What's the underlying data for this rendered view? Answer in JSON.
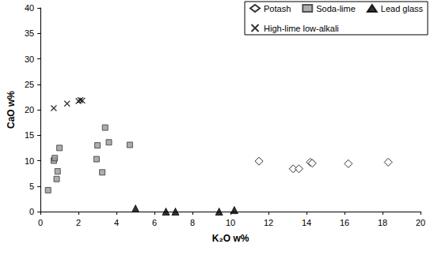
{
  "chart_data": {
    "type": "scatter",
    "x_label": "K₂O w%",
    "y_label": "CaO w%",
    "xlim": [
      0,
      20
    ],
    "xticks": [
      0,
      2,
      4,
      6,
      8,
      10,
      12,
      14,
      16,
      18,
      20
    ],
    "ylim": [
      0,
      40
    ],
    "yticks": [
      0,
      5,
      10,
      15,
      20,
      25,
      30,
      35,
      40
    ],
    "grid": false,
    "legend": "top-right",
    "series": [
      {
        "name": "Potash",
        "color": "#000000",
        "marker": "open-diamond",
        "x": [
          11.5,
          13.3,
          13.6,
          14.2,
          14.3,
          16.2,
          18.3
        ],
        "values": [
          9.9,
          8.4,
          8.4,
          9.7,
          9.5,
          9.4,
          9.7
        ]
      },
      {
        "name": "Soda-lime",
        "color": "#999999",
        "marker": "square",
        "x": [
          0.4,
          0.7,
          0.75,
          0.85,
          0.9,
          1.0,
          3.0,
          2.95,
          3.25,
          3.4,
          3.6,
          4.7
        ],
        "values": [
          4.2,
          10.0,
          10.5,
          6.4,
          7.9,
          12.5,
          13.0,
          10.3,
          7.7,
          16.5,
          13.6,
          13.1
        ]
      },
      {
        "name": "Lead glass",
        "color": "#000000",
        "marker": "triangle",
        "x": [
          5.0,
          6.6,
          7.1,
          9.4,
          10.2
        ],
        "values": [
          0.6,
          0.0,
          0.0,
          0.0,
          0.3
        ]
      },
      {
        "name": "High-lime low-alkali",
        "color": "#000000",
        "marker": "x",
        "x": [
          0.7,
          1.4,
          2.0,
          2.1,
          2.2
        ],
        "values": [
          20.3,
          21.2,
          21.7,
          21.9,
          21.8
        ]
      }
    ]
  }
}
